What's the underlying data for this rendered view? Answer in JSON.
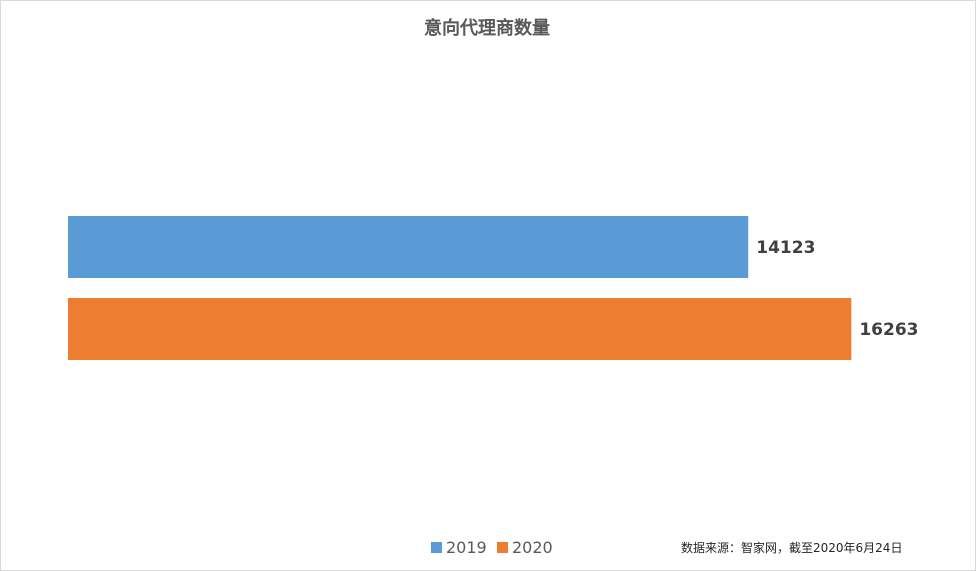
{
  "chart_data": {
    "type": "bar",
    "orientation": "horizontal",
    "title": "意向代理商数量",
    "categories": [
      ""
    ],
    "series": [
      {
        "name": "2019",
        "values": [
          14123
        ],
        "color": "#5B9BD5"
      },
      {
        "name": "2020",
        "values": [
          16263
        ],
        "color": "#ED7D31"
      }
    ],
    "xlim": [
      0,
      18000
    ],
    "grid": false,
    "axes_visible": false,
    "data_labels": true,
    "legend_position": "bottom-center"
  },
  "source_note": "数据来源：智家网，截至2020年6月24日"
}
